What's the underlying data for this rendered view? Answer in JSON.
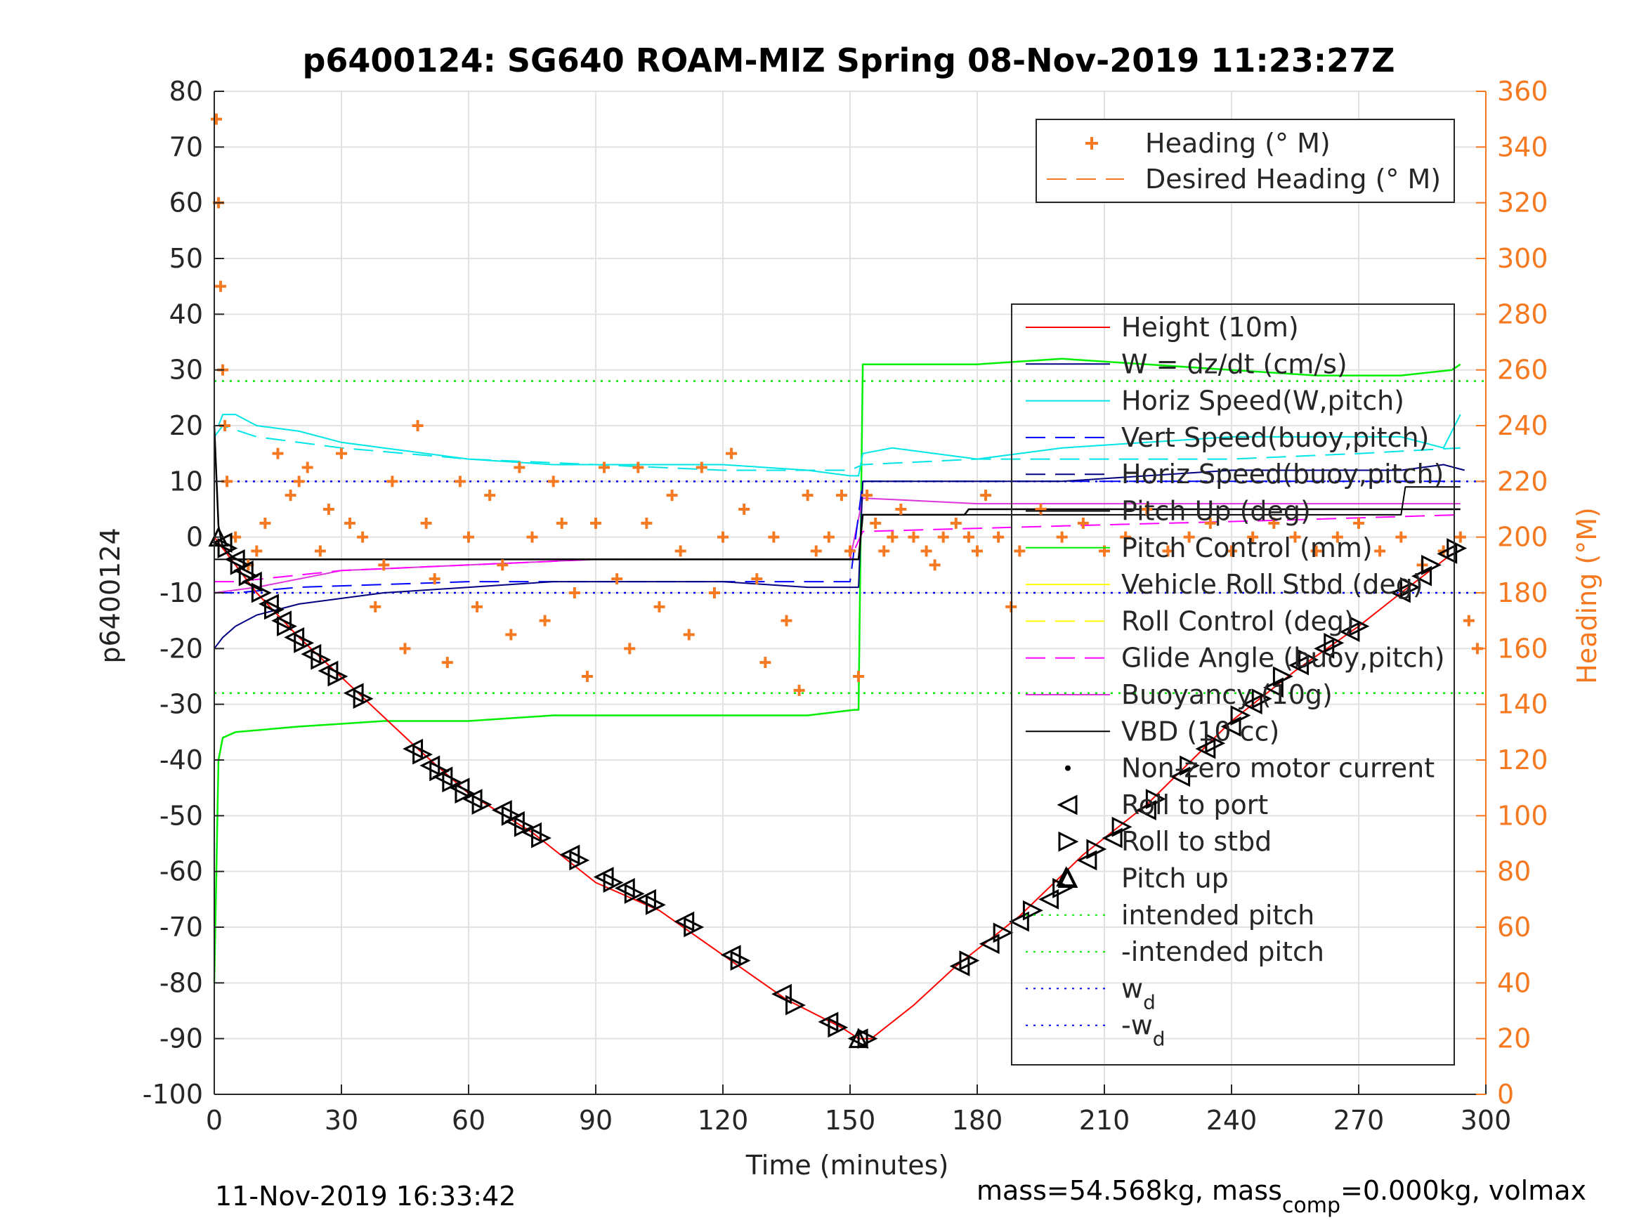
{
  "chart_data": {
    "type": "line",
    "title": "p6400124: SG640 ROAM-MIZ Spring 08-Nov-2019 11:23:27Z",
    "xlabel": "Time (minutes)",
    "ylabel_left": "p6400124",
    "ylabel_right": "Heading (°M)",
    "xlim": [
      0,
      300
    ],
    "ylim_left": [
      -100,
      80
    ],
    "ylim_right": [
      0,
      360
    ],
    "x_ticks": [
      0,
      30,
      60,
      90,
      120,
      150,
      180,
      210,
      240,
      270,
      300
    ],
    "y_ticks_left": [
      -100,
      -90,
      -80,
      -70,
      -60,
      -50,
      -40,
      -30,
      -20,
      -10,
      0,
      10,
      20,
      30,
      40,
      50,
      60,
      70,
      80
    ],
    "y_ticks_right": [
      0,
      20,
      40,
      60,
      80,
      100,
      120,
      140,
      160,
      180,
      200,
      220,
      240,
      260,
      280,
      300,
      320,
      340,
      360
    ],
    "grid": true,
    "footer_left": "11-Nov-2019 16:33:42",
    "footer_right_a": "mass=54.568kg, mass",
    "footer_right_sub": "comp",
    "footer_right_b": "=0.000kg, volmax",
    "colors": {
      "heading": "#f47920",
      "right_axis": "#f47920",
      "height": "#ff0000",
      "w": "#000080",
      "horiz": "#00e5e5",
      "vert": "#0000ff",
      "pitch": "#000000",
      "pitch_control": "#00ee00",
      "roll": "#ffff00",
      "glide": "#ff00ff",
      "buoyancy": "#dd33dd",
      "vbd": "#000000",
      "intended": "#00ee00",
      "wd": "#0000ff"
    },
    "legend_heading": [
      {
        "label": "Heading (° M)"
      },
      {
        "label": "Desired Heading (° M)"
      }
    ],
    "legend_main": [
      {
        "label": "Height (10m)"
      },
      {
        "label": "W = dz/dt (cm/s)"
      },
      {
        "label": "Horiz Speed(W,pitch)"
      },
      {
        "label": "Vert Speed(buoy,pitch)"
      },
      {
        "label": "Horiz Speed(buoy,pitch)"
      },
      {
        "label": "Pitch Up (deg)"
      },
      {
        "label": "Pitch Control (mm)"
      },
      {
        "label": "Vehicle Roll Stbd (deg)"
      },
      {
        "label": "Roll Control (deg)"
      },
      {
        "label": "Glide Angle (buoy,pitch)"
      },
      {
        "label": "Buoyancy (10g)"
      },
      {
        "label": "VBD (10 cc)"
      },
      {
        "label": "Non-zero motor current"
      },
      {
        "label": "Roll to port"
      },
      {
        "label": "Roll to stbd"
      },
      {
        "label": "Pitch up"
      },
      {
        "label": "intended pitch"
      },
      {
        "label": "-intended pitch"
      },
      {
        "label": "w",
        "sub": "d"
      },
      {
        "label": "-w",
        "sub": "d"
      }
    ],
    "series": {
      "height": {
        "x": [
          0,
          10,
          20,
          34,
          48,
          60,
          75,
          90,
          105,
          120,
          135,
          148,
          152,
          153,
          155,
          165,
          175,
          190,
          205,
          220,
          240,
          255,
          270,
          280,
          292
        ],
        "y": [
          0,
          -10,
          -18,
          -28,
          -38,
          -46,
          -53,
          -62,
          -67,
          -75,
          -83,
          -88,
          -90,
          -90,
          -90,
          -84,
          -77,
          -68,
          -57,
          -48,
          -33,
          -24,
          -16,
          -10,
          -3
        ]
      },
      "w": {
        "x": [
          0,
          2,
          5,
          10,
          20,
          40,
          60,
          80,
          100,
          120,
          140,
          150,
          152,
          153,
          160,
          180,
          200,
          220,
          240,
          260,
          280,
          290,
          295
        ],
        "y": [
          -20,
          -18,
          -16,
          -14,
          -12,
          -10,
          -9,
          -8,
          -8,
          -8,
          -9,
          -9,
          -9,
          10,
          10,
          10,
          10,
          11,
          12,
          12,
          12,
          13,
          12
        ]
      },
      "horiz": {
        "x": [
          0,
          1,
          2,
          5,
          10,
          20,
          30,
          40,
          60,
          80,
          100,
          120,
          140,
          150,
          152,
          153,
          160,
          180,
          200,
          220,
          240,
          260,
          280,
          290,
          294
        ],
        "y": [
          20,
          20,
          22,
          22,
          20,
          19,
          17,
          16,
          14,
          13,
          13,
          13,
          12,
          11,
          11,
          15,
          16,
          14,
          16,
          17,
          18,
          18,
          18,
          16,
          22
        ]
      },
      "horiz_dash": {
        "x": [
          0,
          2,
          10,
          30,
          60,
          90,
          120,
          150,
          153,
          180,
          210,
          240,
          270,
          294
        ],
        "y": [
          18,
          20,
          18,
          16,
          14,
          13,
          12,
          12,
          13,
          14,
          14,
          14,
          15,
          16
        ]
      },
      "vert_dash": {
        "x": [
          0,
          5,
          20,
          60,
          100,
          150,
          153,
          200,
          250,
          294
        ],
        "y": [
          -10,
          -10,
          -9,
          -8,
          -8,
          -8,
          10,
          10,
          10,
          10
        ]
      },
      "pitch_up": {
        "x": [
          0,
          1,
          2,
          5,
          30,
          60,
          90,
          120,
          151,
          152,
          153,
          160,
          177,
          178,
          180,
          200,
          230,
          260,
          280,
          294
        ],
        "y": [
          20,
          2,
          -2,
          -4,
          -4,
          -4,
          -4,
          -4,
          -4,
          -4,
          4,
          4,
          4,
          5,
          5,
          5,
          5,
          5,
          5,
          5
        ]
      },
      "vbd": {
        "x": [
          0,
          152,
          153,
          280,
          281,
          294
        ],
        "y": [
          -4,
          -4,
          4,
          4,
          9,
          9
        ]
      },
      "pitch_control": {
        "x": [
          0,
          1,
          2,
          5,
          20,
          40,
          60,
          80,
          100,
          120,
          140,
          151,
          152,
          153,
          160,
          180,
          200,
          220,
          240,
          260,
          280,
          292,
          294
        ],
        "y": [
          -80,
          -40,
          -36,
          -35,
          -34,
          -33,
          -33,
          -32,
          -32,
          -32,
          -32,
          -31,
          -31,
          31,
          31,
          31,
          32,
          31,
          30,
          29,
          29,
          30,
          31
        ]
      },
      "glide_angle": {
        "x": [
          0,
          5,
          30,
          60,
          90,
          120,
          150,
          153,
          200,
          250,
          294
        ],
        "y": [
          -8,
          -8,
          -6,
          -5,
          -4,
          -4,
          -4,
          1,
          2,
          3,
          4
        ]
      },
      "buoyancy": {
        "x": [
          0,
          10,
          30,
          60,
          90,
          120,
          150,
          153,
          180,
          220,
          260,
          294
        ],
        "y": [
          -10,
          -9,
          -6,
          -5,
          -4,
          -4,
          -4,
          7,
          6,
          6,
          6,
          6
        ]
      },
      "heading_scatter": {
        "x": [
          0.5,
          1,
          1.5,
          2,
          2.5,
          3,
          5,
          8,
          10,
          12,
          15,
          18,
          20,
          22,
          25,
          27,
          30,
          32,
          35,
          38,
          40,
          42,
          45,
          48,
          50,
          52,
          55,
          58,
          60,
          62,
          65,
          68,
          70,
          72,
          75,
          78,
          80,
          82,
          85,
          88,
          90,
          92,
          95,
          98,
          100,
          102,
          105,
          108,
          110,
          112,
          115,
          118,
          120,
          122,
          125,
          128,
          130,
          132,
          135,
          138,
          140,
          142,
          145,
          148,
          150,
          152,
          154,
          156,
          158,
          160,
          162,
          165,
          168,
          170,
          172,
          175,
          178,
          180,
          182,
          185,
          188,
          190,
          195,
          200,
          205,
          210,
          215,
          220,
          225,
          230,
          235,
          240,
          245,
          250,
          255,
          260,
          265,
          270,
          275,
          280,
          285,
          290,
          294,
          296,
          298
        ],
        "y": [
          350,
          320,
          290,
          260,
          240,
          220,
          200,
          190,
          195,
          205,
          230,
          215,
          220,
          225,
          195,
          210,
          230,
          205,
          200,
          175,
          190,
          220,
          160,
          240,
          205,
          185,
          155,
          220,
          200,
          175,
          215,
          190,
          165,
          225,
          200,
          170,
          220,
          205,
          180,
          150,
          205,
          225,
          185,
          160,
          225,
          205,
          175,
          215,
          195,
          165,
          225,
          180,
          200,
          230,
          210,
          185,
          155,
          200,
          170,
          145,
          215,
          195,
          200,
          215,
          195,
          150,
          215,
          205,
          195,
          200,
          210,
          200,
          195,
          190,
          200,
          205,
          200,
          195,
          215,
          200,
          175,
          195,
          210,
          200,
          205,
          195,
          200,
          210,
          195,
          200,
          205,
          195,
          200,
          205,
          200,
          195,
          200,
          205,
          195,
          200,
          190,
          195,
          200,
          170,
          160
        ]
      },
      "markers_port": {
        "x": [
          2,
          5,
          7,
          9,
          13,
          16,
          19,
          23,
          27,
          33,
          47,
          51,
          54,
          58,
          61,
          68,
          71,
          75,
          84,
          92,
          97,
          102,
          111,
          122,
          134,
          145,
          152,
          176,
          183,
          190,
          197,
          206,
          212,
          220,
          228,
          234,
          240,
          245,
          250,
          256,
          262,
          268,
          280,
          285,
          291
        ],
        "y": [
          -1,
          -4,
          -6,
          -8,
          -12,
          -15,
          -18,
          -21,
          -24,
          -28,
          -38,
          -41,
          -43,
          -45,
          -47,
          -49,
          -51,
          -53,
          -57,
          -61,
          -63,
          -65,
          -69,
          -75,
          -82,
          -87,
          -90,
          -77,
          -73,
          -69,
          -65,
          -58,
          -54,
          -49,
          -43,
          -38,
          -34,
          -30,
          -27,
          -23,
          -20,
          -17,
          -10,
          -7,
          -3
        ]
      },
      "markers_stbd": {
        "x": [
          3,
          6,
          8,
          11,
          14,
          17,
          21,
          25,
          29,
          35,
          49,
          53,
          56,
          59,
          63,
          70,
          73,
          77,
          86,
          94,
          99,
          104,
          113,
          124,
          137,
          147,
          154,
          178,
          186,
          193,
          200,
          208,
          214,
          222,
          230,
          236,
          242,
          247,
          252,
          258,
          264,
          270,
          282,
          287,
          293
        ],
        "y": [
          -2,
          -5,
          -7,
          -10,
          -13,
          -16,
          -19,
          -22,
          -25,
          -29,
          -39,
          -42,
          -44,
          -46,
          -48,
          -50,
          -52,
          -54,
          -58,
          -62,
          -64,
          -66,
          -70,
          -76,
          -84,
          -88,
          -90,
          -76,
          -71,
          -67,
          -63,
          -56,
          -52,
          -47,
          -41,
          -37,
          -32,
          -29,
          -25,
          -22,
          -19,
          -16,
          -9,
          -5,
          -2
        ]
      },
      "markers_pitch": {
        "x": [
          1,
          152,
          201
        ],
        "y": [
          0,
          -90,
          -61
        ]
      }
    }
  }
}
